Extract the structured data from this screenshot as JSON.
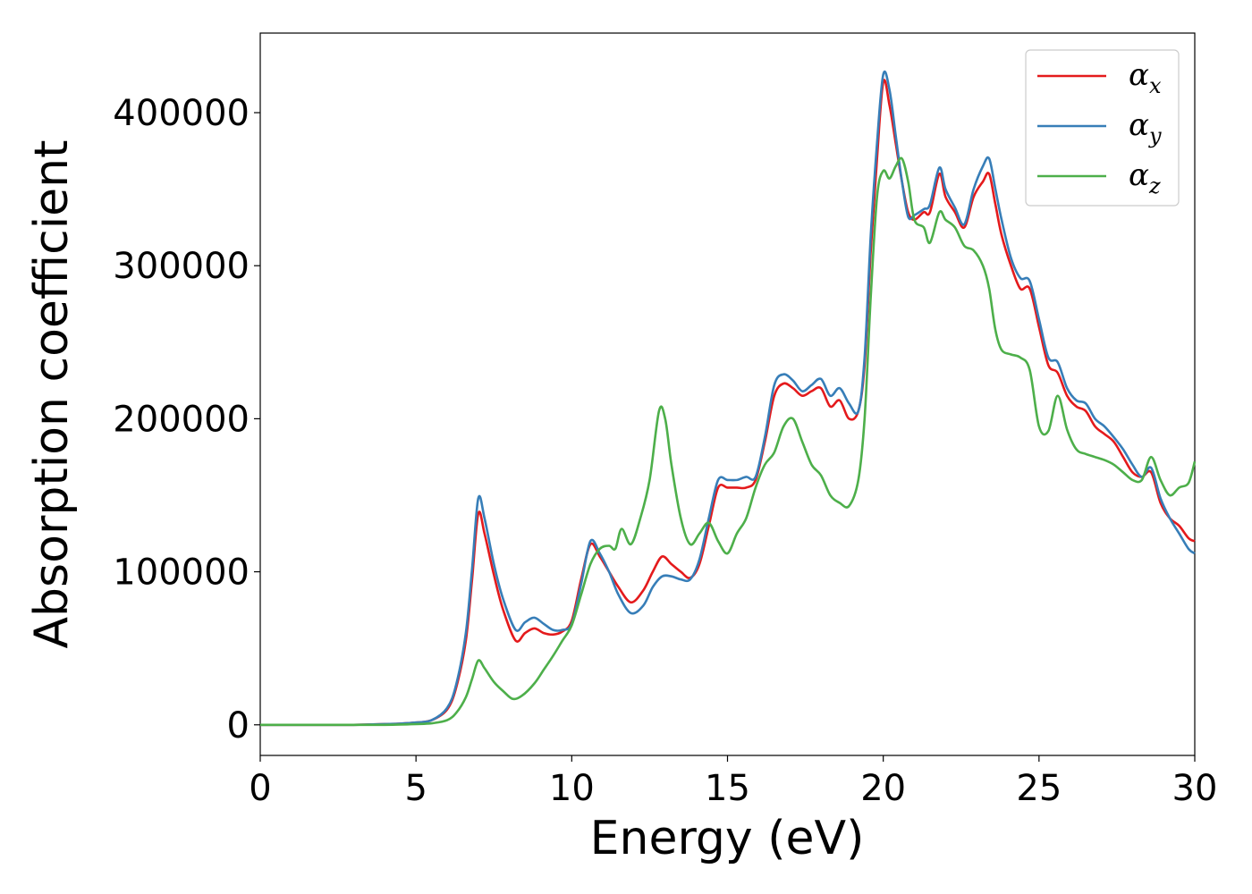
{
  "chart_data": {
    "type": "line",
    "xlabel": "Energy (eV)",
    "ylabel": "Absorption coefficient",
    "xlim": [
      0,
      30
    ],
    "ylim": [
      -20000,
      452000
    ],
    "xticks": [
      0,
      5,
      10,
      15,
      20,
      25,
      30
    ],
    "xtick_labels": [
      "0",
      "5",
      "10",
      "15",
      "20",
      "25",
      "30"
    ],
    "yticks": [
      0,
      100000,
      200000,
      300000,
      400000
    ],
    "ytick_labels": [
      "0",
      "100000",
      "200000",
      "300000",
      "400000"
    ],
    "grid": false,
    "legend_position": "top-right",
    "series": [
      {
        "name": "α",
        "name_subscript": "x",
        "color": "#e41a1c",
        "x": [
          0,
          1,
          2,
          3,
          4,
          4.5,
          5,
          5.5,
          6,
          6.3,
          6.6,
          6.8,
          7.0,
          7.2,
          7.5,
          7.8,
          8.2,
          8.5,
          8.8,
          9.1,
          9.4,
          9.7,
          10.0,
          10.3,
          10.6,
          10.9,
          11.2,
          11.5,
          11.9,
          12.3,
          12.6,
          12.9,
          13.2,
          13.5,
          13.8,
          14.1,
          14.4,
          14.7,
          15.0,
          15.3,
          15.6,
          15.9,
          16.2,
          16.5,
          16.8,
          17.1,
          17.4,
          17.7,
          18.0,
          18.3,
          18.6,
          18.9,
          19.2,
          19.4,
          19.6,
          19.8,
          20.0,
          20.2,
          20.4,
          20.6,
          20.8,
          21.0,
          21.3,
          21.5,
          21.8,
          22.0,
          22.3,
          22.6,
          22.9,
          23.2,
          23.4,
          23.6,
          23.8,
          24.1,
          24.4,
          24.7,
          25.0,
          25.3,
          25.6,
          25.9,
          26.2,
          26.5,
          26.8,
          27.1,
          27.4,
          27.7,
          28.0,
          28.3,
          28.6,
          28.9,
          29.2,
          29.5,
          29.8,
          30.0
        ],
        "y": [
          0,
          0,
          0,
          0,
          500,
          800,
          1500,
          3000,
          10000,
          25000,
          55000,
          95000,
          138000,
          125000,
          98000,
          75000,
          55000,
          60000,
          63000,
          60000,
          59000,
          61000,
          68000,
          95000,
          118000,
          110000,
          100000,
          90000,
          80000,
          88000,
          100000,
          110000,
          105000,
          100000,
          96000,
          105000,
          130000,
          155000,
          155000,
          155000,
          155000,
          160000,
          185000,
          215000,
          223000,
          220000,
          215000,
          218000,
          220000,
          208000,
          212000,
          200000,
          205000,
          235000,
          310000,
          370000,
          420000,
          405000,
          380000,
          355000,
          335000,
          330000,
          335000,
          335000,
          360000,
          345000,
          335000,
          325000,
          345000,
          355000,
          360000,
          340000,
          320000,
          300000,
          285000,
          285000,
          260000,
          235000,
          230000,
          215000,
          208000,
          205000,
          195000,
          190000,
          185000,
          175000,
          165000,
          162000,
          165000,
          145000,
          135000,
          130000,
          122000,
          120000
        ]
      },
      {
        "name": "α",
        "name_subscript": "y",
        "color": "#377eb8",
        "x": [
          0,
          1,
          2,
          3,
          4,
          4.5,
          5,
          5.5,
          6,
          6.3,
          6.6,
          6.8,
          7.0,
          7.2,
          7.5,
          7.8,
          8.2,
          8.5,
          8.8,
          9.1,
          9.4,
          9.7,
          10.0,
          10.3,
          10.6,
          10.9,
          11.2,
          11.5,
          11.9,
          12.3,
          12.6,
          12.9,
          13.2,
          13.5,
          13.8,
          14.1,
          14.4,
          14.7,
          15.0,
          15.3,
          15.6,
          15.9,
          16.2,
          16.5,
          16.8,
          17.1,
          17.4,
          17.7,
          18.0,
          18.3,
          18.6,
          18.9,
          19.2,
          19.4,
          19.6,
          19.8,
          20.0,
          20.2,
          20.4,
          20.6,
          20.8,
          21.0,
          21.3,
          21.5,
          21.8,
          22.0,
          22.3,
          22.6,
          22.9,
          23.2,
          23.4,
          23.6,
          23.8,
          24.1,
          24.4,
          24.7,
          25.0,
          25.3,
          25.6,
          25.9,
          26.2,
          26.5,
          26.8,
          27.1,
          27.4,
          27.7,
          28.0,
          28.3,
          28.6,
          28.9,
          29.2,
          29.5,
          29.8,
          30.0
        ],
        "y": [
          0,
          0,
          0,
          0,
          500,
          800,
          1500,
          3000,
          11000,
          27000,
          60000,
          102000,
          148000,
          135000,
          105000,
          82000,
          62000,
          67000,
          70000,
          66000,
          62000,
          62000,
          66000,
          92000,
          120000,
          112000,
          100000,
          85000,
          73000,
          78000,
          90000,
          97000,
          97000,
          95000,
          95000,
          108000,
          135000,
          160000,
          160000,
          160000,
          162000,
          162000,
          188000,
          222000,
          229000,
          225000,
          218000,
          222000,
          226000,
          215000,
          220000,
          210000,
          205000,
          240000,
          320000,
          380000,
          425000,
          415000,
          385000,
          355000,
          332000,
          333000,
          337000,
          340000,
          364000,
          350000,
          338000,
          327000,
          350000,
          365000,
          370000,
          350000,
          330000,
          305000,
          292000,
          290000,
          265000,
          240000,
          237000,
          220000,
          212000,
          210000,
          200000,
          195000,
          188000,
          180000,
          170000,
          162000,
          168000,
          148000,
          135000,
          125000,
          115000,
          112000
        ]
      },
      {
        "name": "α",
        "name_subscript": "z",
        "color": "#4daf4a",
        "x": [
          0,
          1,
          2,
          3,
          4,
          4.5,
          5,
          5.5,
          6,
          6.3,
          6.6,
          6.8,
          7.0,
          7.2,
          7.5,
          7.8,
          8.1,
          8.4,
          8.8,
          9.1,
          9.4,
          9.7,
          10.0,
          10.3,
          10.6,
          10.9,
          11.2,
          11.4,
          11.6,
          11.9,
          12.2,
          12.5,
          12.8,
          13.0,
          13.2,
          13.5,
          13.8,
          14.1,
          14.4,
          14.7,
          15.0,
          15.3,
          15.6,
          15.9,
          16.2,
          16.5,
          16.8,
          17.1,
          17.4,
          17.7,
          18.0,
          18.3,
          18.6,
          18.9,
          19.2,
          19.4,
          19.6,
          19.8,
          20.0,
          20.2,
          20.4,
          20.6,
          20.8,
          21.0,
          21.3,
          21.5,
          21.8,
          22.0,
          22.3,
          22.6,
          22.9,
          23.2,
          23.4,
          23.6,
          23.8,
          24.1,
          24.4,
          24.7,
          25.0,
          25.3,
          25.6,
          25.9,
          26.2,
          26.5,
          26.8,
          27.1,
          27.4,
          27.7,
          28.0,
          28.3,
          28.6,
          28.9,
          29.2,
          29.5,
          29.8,
          30.0
        ],
        "y": [
          0,
          0,
          0,
          0,
          0,
          200,
          500,
          1000,
          3000,
          8000,
          18000,
          30000,
          42000,
          37000,
          28000,
          22000,
          17000,
          19000,
          27000,
          36000,
          45000,
          55000,
          65000,
          85000,
          105000,
          115000,
          117000,
          115000,
          128000,
          118000,
          135000,
          160000,
          205000,
          200000,
          170000,
          135000,
          118000,
          125000,
          132000,
          120000,
          112000,
          125000,
          135000,
          155000,
          170000,
          178000,
          195000,
          200000,
          185000,
          170000,
          163000,
          150000,
          145000,
          143000,
          160000,
          200000,
          280000,
          345000,
          362000,
          357000,
          365000,
          370000,
          355000,
          330000,
          325000,
          315000,
          335000,
          330000,
          325000,
          313000,
          310000,
          300000,
          285000,
          258000,
          245000,
          242000,
          240000,
          232000,
          195000,
          192000,
          215000,
          193000,
          180000,
          177000,
          175000,
          173000,
          170000,
          165000,
          160000,
          160000,
          175000,
          160000,
          150000,
          155000,
          158000,
          172000
        ]
      }
    ]
  }
}
